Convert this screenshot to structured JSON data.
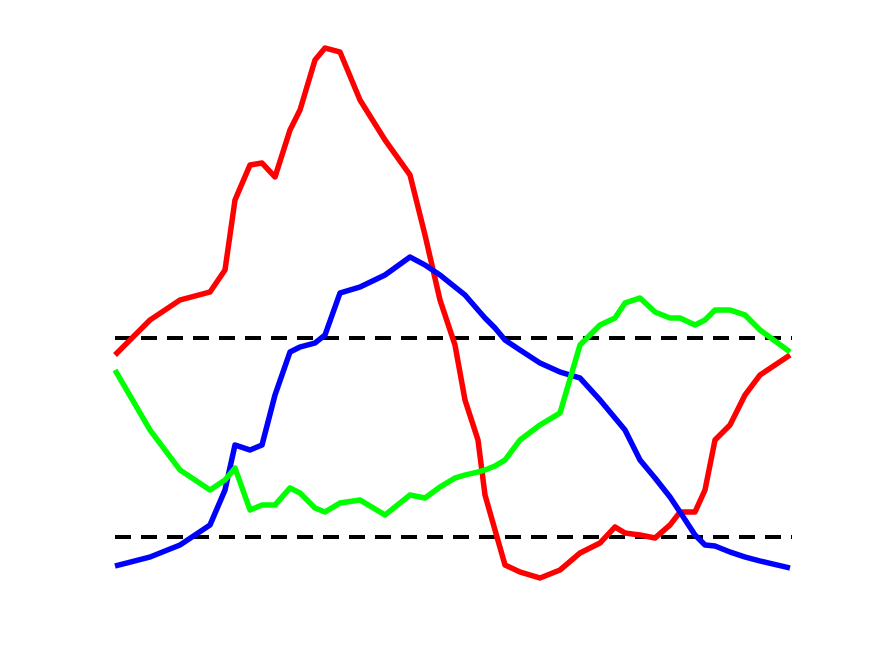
{
  "chart_data": {
    "type": "line",
    "x": [
      0,
      35,
      65,
      95,
      110,
      120,
      135,
      147,
      160,
      175,
      185,
      200,
      210,
      225,
      245,
      270,
      295,
      310,
      325,
      340,
      350,
      363,
      370,
      380,
      390,
      405,
      425,
      445,
      465,
      485,
      500,
      510,
      525,
      540,
      555,
      565,
      580,
      590,
      600,
      615,
      630,
      645,
      675
    ],
    "series": [
      {
        "color": "#ff0000",
        "values": [
          245,
          280,
          300,
          308,
          330,
          400,
          435,
          437,
          423,
          470,
          490,
          540,
          552,
          548,
          500,
          460,
          425,
          365,
          300,
          255,
          200,
          160,
          105,
          70,
          35,
          28,
          22,
          30,
          47,
          57,
          73,
          67,
          65,
          62,
          75,
          88,
          88,
          110,
          160,
          175,
          205,
          225,
          245
        ]
      },
      {
        "color": "#0000ff",
        "values": [
          34,
          43,
          55,
          75,
          110,
          155,
          150,
          155,
          205,
          248,
          253,
          257,
          265,
          307,
          313,
          325,
          343,
          335,
          325,
          313,
          305,
          290,
          282,
          272,
          260,
          250,
          237,
          228,
          222,
          200,
          182,
          170,
          140,
          122,
          103,
          88,
          65,
          55,
          54,
          48,
          43,
          39,
          32
        ]
      },
      {
        "color": "#00ff00",
        "values": [
          230,
          170,
          130,
          110,
          120,
          132,
          90,
          95,
          95,
          112,
          107,
          92,
          88,
          97,
          100,
          85,
          105,
          102,
          113,
          122,
          125,
          128,
          130,
          134,
          140,
          160,
          175,
          187,
          255,
          275,
          282,
          297,
          302,
          288,
          282,
          282,
          275,
          280,
          290,
          290,
          285,
          270,
          248
        ]
      }
    ],
    "hlines": [
      262,
      63
    ],
    "hline_color": "#000000",
    "xlim": [
      0,
      677
    ],
    "ylim": [
      0,
      570
    ]
  }
}
